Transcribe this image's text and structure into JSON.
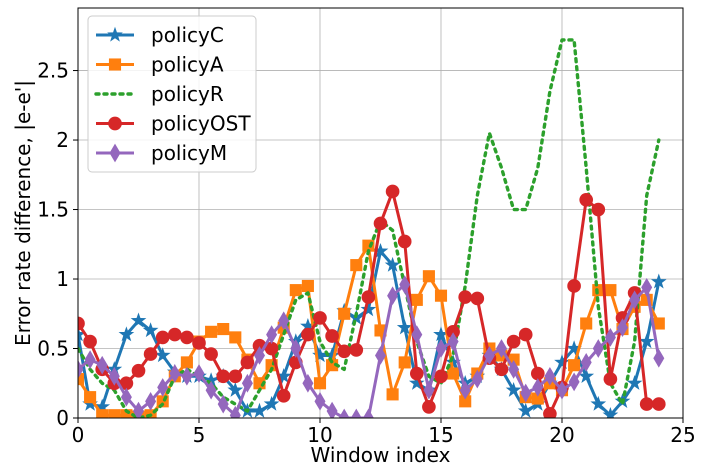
{
  "chart_data": {
    "type": "line",
    "xlabel": "Window index",
    "ylabel": "Error rate difference, |e-e'|",
    "xlim": [
      0,
      25
    ],
    "ylim": [
      0,
      2.95
    ],
    "x_ticks": [
      "0",
      "5",
      "10",
      "15",
      "20",
      "25"
    ],
    "y_ticks": [
      "0",
      "0.5",
      "1",
      "1.5",
      "2",
      "2.5"
    ],
    "x_tick_values": [
      0,
      5,
      10,
      15,
      20,
      25
    ],
    "y_tick_values": [
      0,
      0.5,
      1,
      1.5,
      2,
      2.5
    ],
    "grid": true,
    "legend_position": "upper-left",
    "series": [
      {
        "name": "policyC",
        "color": "#1f77b4",
        "line_style": "solid",
        "marker": "star",
        "x": [
          0,
          0.5,
          1,
          1.5,
          2,
          2.5,
          3,
          3.5,
          4,
          4.5,
          5,
          5.5,
          6,
          6.5,
          7,
          7.5,
          8,
          8.5,
          9,
          9.5,
          10,
          10.5,
          11,
          11.5,
          12,
          12.5,
          13,
          13.5,
          14,
          14.5,
          15,
          15.5,
          16,
          16.5,
          17,
          17.5,
          18,
          18.5,
          19,
          19.5,
          20,
          20.5,
          21,
          21.5,
          22,
          22.5,
          23,
          23.5,
          24
        ],
        "y": [
          0.6,
          0.1,
          0.08,
          0.35,
          0.6,
          0.7,
          0.63,
          0.45,
          0.33,
          0.3,
          0.3,
          0.27,
          0.3,
          0.2,
          0.05,
          0.05,
          0.1,
          0.3,
          0.55,
          0.66,
          0.45,
          0.45,
          0.77,
          0.72,
          0.78,
          1.2,
          1.1,
          0.65,
          0.25,
          0.2,
          0.6,
          0.4,
          0.25,
          0.3,
          0.45,
          0.35,
          0.2,
          0.05,
          0.1,
          0.25,
          0.4,
          0.5,
          0.3,
          0.1,
          0.02,
          0.12,
          0.25,
          0.55,
          0.98
        ]
      },
      {
        "name": "policyA",
        "color": "#ff7f0e",
        "line_style": "solid",
        "marker": "square",
        "x": [
          0,
          0.5,
          1,
          1.5,
          2,
          2.5,
          3,
          3.5,
          4,
          4.5,
          5,
          5.5,
          6,
          6.5,
          7,
          7.5,
          8,
          8.5,
          9,
          9.5,
          10,
          10.5,
          11,
          11.5,
          12,
          12.5,
          13,
          13.5,
          14,
          14.5,
          15,
          15.5,
          16,
          16.5,
          17,
          17.5,
          18,
          18.5,
          19,
          19.5,
          20,
          20.5,
          21,
          21.5,
          22,
          22.5,
          23,
          23.5,
          24
        ],
        "y": [
          0.28,
          0.15,
          0.02,
          0.02,
          0.02,
          0.01,
          0.02,
          0.12,
          0.3,
          0.4,
          0.55,
          0.62,
          0.64,
          0.58,
          0.42,
          0.25,
          0.38,
          0.65,
          0.92,
          0.95,
          0.25,
          0.38,
          0.75,
          1.1,
          1.24,
          0.63,
          0.17,
          0.4,
          0.85,
          1.02,
          0.88,
          0.32,
          0.12,
          0.32,
          0.5,
          0.45,
          0.42,
          0.15,
          0.14,
          0.25,
          0.2,
          0.38,
          0.68,
          0.92,
          0.92,
          0.64,
          0.8,
          0.85,
          0.68
        ]
      },
      {
        "name": "policyR",
        "color": "#2ca02c",
        "line_style": "dotted",
        "marker": "none",
        "x": [
          0,
          0.5,
          1,
          1.5,
          2,
          2.5,
          3,
          3.5,
          4,
          4.5,
          5,
          5.5,
          6,
          6.5,
          7,
          7.5,
          8,
          8.5,
          9,
          9.5,
          10,
          10.5,
          11,
          11.5,
          12,
          12.5,
          13,
          13.5,
          14,
          14.5,
          15,
          15.5,
          16,
          16.5,
          17,
          17.5,
          18,
          18.5,
          19,
          19.5,
          20,
          20.5,
          21,
          21.5,
          22,
          22.5,
          23,
          23.5,
          24
        ],
        "y": [
          0.5,
          0.35,
          0.25,
          0.2,
          0.05,
          0.0,
          0.02,
          0.1,
          0.3,
          0.35,
          0.3,
          0.25,
          0.15,
          0.1,
          0.05,
          0.2,
          0.35,
          0.6,
          0.85,
          0.9,
          0.55,
          0.4,
          0.35,
          0.75,
          1.2,
          1.42,
          1.35,
          0.95,
          0.55,
          0.3,
          0.25,
          0.45,
          0.95,
          1.6,
          2.05,
          1.8,
          1.5,
          1.5,
          1.8,
          2.35,
          2.72,
          2.72,
          1.8,
          0.8,
          0.25,
          0.1,
          0.55,
          1.6,
          2.0
        ]
      },
      {
        "name": "policyOST",
        "color": "#d62728",
        "line_style": "solid",
        "marker": "circle",
        "x": [
          0,
          0.5,
          1,
          1.5,
          2,
          2.5,
          3,
          3.5,
          4,
          4.5,
          5,
          5.5,
          6,
          6.5,
          7,
          7.5,
          8,
          8.5,
          9,
          9.5,
          10,
          10.5,
          11,
          11.5,
          12,
          12.5,
          13,
          13.5,
          14,
          14.5,
          15,
          15.5,
          16,
          16.5,
          17,
          17.5,
          18,
          18.5,
          19,
          19.5,
          20,
          20.5,
          21,
          21.5,
          22,
          22.5,
          23,
          23.5,
          24
        ],
        "y": [
          0.68,
          0.55,
          0.35,
          0.25,
          0.25,
          0.34,
          0.46,
          0.58,
          0.6,
          0.58,
          0.54,
          0.46,
          0.3,
          0.3,
          0.4,
          0.52,
          0.5,
          0.16,
          0.4,
          0.6,
          0.72,
          0.59,
          0.48,
          0.49,
          0.87,
          1.4,
          1.63,
          1.27,
          0.32,
          0.08,
          0.3,
          0.62,
          0.87,
          0.86,
          0.43,
          0.35,
          0.55,
          0.6,
          0.32,
          0.03,
          0.22,
          0.95,
          1.57,
          1.5,
          0.28,
          0.72,
          0.9,
          0.1,
          0.1
        ]
      },
      {
        "name": "policyM",
        "color": "#9467bd",
        "line_style": "solid",
        "marker": "diamond",
        "x": [
          0,
          0.5,
          1,
          1.5,
          2,
          2.5,
          3,
          3.5,
          4,
          4.5,
          5,
          5.5,
          6,
          6.5,
          7,
          7.5,
          8,
          8.5,
          9,
          9.5,
          10,
          10.5,
          11,
          11.5,
          12,
          12.5,
          13,
          13.5,
          14,
          14.5,
          15,
          15.5,
          16,
          16.5,
          17,
          17.5,
          18,
          18.5,
          19,
          19.5,
          20,
          20.5,
          21,
          21.5,
          22,
          22.5,
          23,
          23.5,
          24
        ],
        "y": [
          0.35,
          0.42,
          0.38,
          0.3,
          0.15,
          0.05,
          0.12,
          0.22,
          0.32,
          0.3,
          0.32,
          0.2,
          0.1,
          0.02,
          0.25,
          0.45,
          0.6,
          0.7,
          0.5,
          0.25,
          0.12,
          0.05,
          0.0,
          0.0,
          0.0,
          0.45,
          0.88,
          0.96,
          0.6,
          0.2,
          0.5,
          0.55,
          0.2,
          0.28,
          0.45,
          0.5,
          0.35,
          0.18,
          0.22,
          0.3,
          0.2,
          0.26,
          0.4,
          0.5,
          0.58,
          0.65,
          0.85,
          0.94,
          0.43
        ]
      }
    ]
  }
}
